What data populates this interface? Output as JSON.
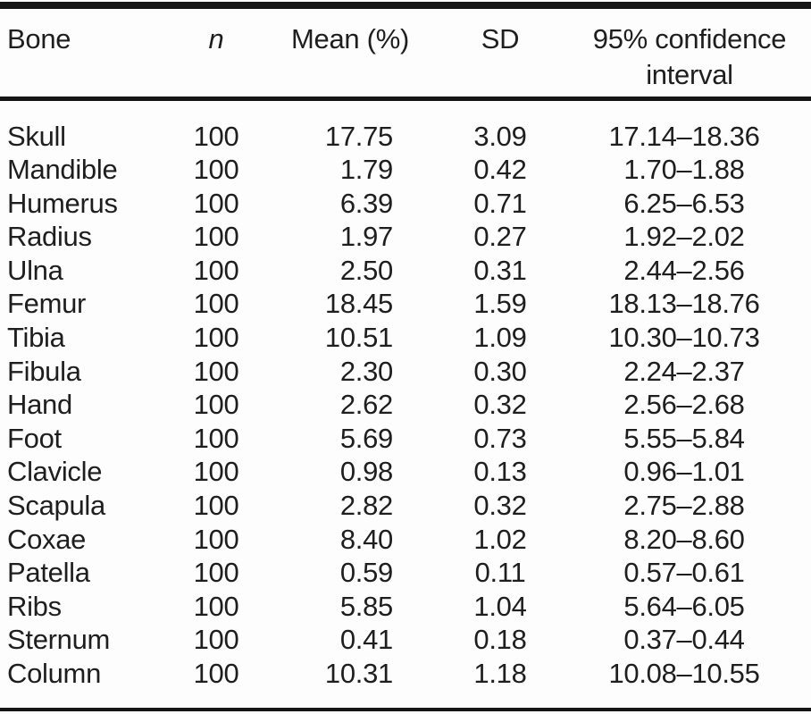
{
  "colors": {
    "text": "#1e1e1e",
    "rule": "#151515",
    "background": "#fdfdfd"
  },
  "table": {
    "headers": {
      "bone": "Bone",
      "n": "n",
      "mean": "Mean (%)",
      "sd": "SD",
      "ci": "95% confidence interval"
    },
    "rows": [
      {
        "bone": "Skull",
        "n": "100",
        "mean": "17.75",
        "sd": "3.09",
        "ci": "17.14–18.36"
      },
      {
        "bone": "Mandible",
        "n": "100",
        "mean": "1.79",
        "sd": "0.42",
        "ci": "1.70–1.88"
      },
      {
        "bone": "Humerus",
        "n": "100",
        "mean": "6.39",
        "sd": "0.71",
        "ci": "6.25–6.53"
      },
      {
        "bone": "Radius",
        "n": "100",
        "mean": "1.97",
        "sd": "0.27",
        "ci": "1.92–2.02"
      },
      {
        "bone": "Ulna",
        "n": "100",
        "mean": "2.50",
        "sd": "0.31",
        "ci": "2.44–2.56"
      },
      {
        "bone": "Femur",
        "n": "100",
        "mean": "18.45",
        "sd": "1.59",
        "ci": "18.13–18.76"
      },
      {
        "bone": "Tibia",
        "n": "100",
        "mean": "10.51",
        "sd": "1.09",
        "ci": "10.30–10.73"
      },
      {
        "bone": "Fibula",
        "n": "100",
        "mean": "2.30",
        "sd": "0.30",
        "ci": "2.24–2.37"
      },
      {
        "bone": "Hand",
        "n": "100",
        "mean": "2.62",
        "sd": "0.32",
        "ci": "2.56–2.68"
      },
      {
        "bone": "Foot",
        "n": "100",
        "mean": "5.69",
        "sd": "0.73",
        "ci": "5.55–5.84"
      },
      {
        "bone": "Clavicle",
        "n": "100",
        "mean": "0.98",
        "sd": "0.13",
        "ci": "0.96–1.01"
      },
      {
        "bone": "Scapula",
        "n": "100",
        "mean": "2.82",
        "sd": "0.32",
        "ci": "2.75–2.88"
      },
      {
        "bone": "Coxae",
        "n": "100",
        "mean": "8.40",
        "sd": "1.02",
        "ci": "8.20–8.60"
      },
      {
        "bone": "Patella",
        "n": "100",
        "mean": "0.59",
        "sd": "0.11",
        "ci": "0.57–0.61"
      },
      {
        "bone": "Ribs",
        "n": "100",
        "mean": "5.85",
        "sd": "1.04",
        "ci": "5.64–6.05"
      },
      {
        "bone": "Sternum",
        "n": "100",
        "mean": "0.41",
        "sd": "0.18",
        "ci": "0.37–0.44"
      },
      {
        "bone": "Column",
        "n": "100",
        "mean": "10.31",
        "sd": "1.18",
        "ci": "10.08–10.55"
      }
    ]
  },
  "chart_data": {
    "type": "table",
    "title": "",
    "columns": [
      "Bone",
      "n",
      "Mean (%)",
      "SD",
      "95% confidence interval"
    ],
    "rows": [
      [
        "Skull",
        100,
        17.75,
        3.09,
        "17.14–18.36"
      ],
      [
        "Mandible",
        100,
        1.79,
        0.42,
        "1.70–1.88"
      ],
      [
        "Humerus",
        100,
        6.39,
        0.71,
        "6.25–6.53"
      ],
      [
        "Radius",
        100,
        1.97,
        0.27,
        "1.92–2.02"
      ],
      [
        "Ulna",
        100,
        2.5,
        0.31,
        "2.44–2.56"
      ],
      [
        "Femur",
        100,
        18.45,
        1.59,
        "18.13–18.76"
      ],
      [
        "Tibia",
        100,
        10.51,
        1.09,
        "10.30–10.73"
      ],
      [
        "Fibula",
        100,
        2.3,
        0.3,
        "2.24–2.37"
      ],
      [
        "Hand",
        100,
        2.62,
        0.32,
        "2.56–2.68"
      ],
      [
        "Foot",
        100,
        5.69,
        0.73,
        "5.55–5.84"
      ],
      [
        "Clavicle",
        100,
        0.98,
        0.13,
        "0.96–1.01"
      ],
      [
        "Scapula",
        100,
        2.82,
        0.32,
        "2.75–2.88"
      ],
      [
        "Coxae",
        100,
        8.4,
        1.02,
        "8.20–8.60"
      ],
      [
        "Patella",
        100,
        0.59,
        0.11,
        "0.57–0.61"
      ],
      [
        "Ribs",
        100,
        5.85,
        1.04,
        "5.64–6.05"
      ],
      [
        "Sternum",
        100,
        0.41,
        0.18,
        "0.37–0.44"
      ],
      [
        "Column",
        100,
        10.31,
        1.18,
        "10.08–10.55"
      ]
    ]
  }
}
